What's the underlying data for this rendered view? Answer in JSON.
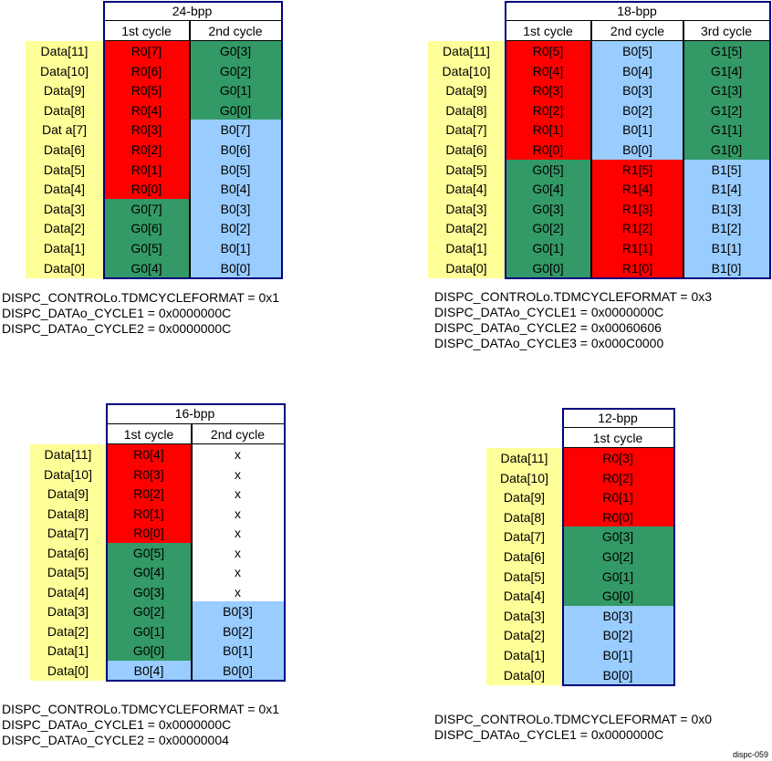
{
  "colors": {
    "R": "#ff0000",
    "G": "#339966",
    "B": "#99ccff",
    "W": "#ffffff",
    "label": "#ffff99",
    "border": "#000080"
  },
  "tables": [
    {
      "title": "24-bpp",
      "columns": [
        "1st cycle",
        "2nd cycle"
      ],
      "row_labels": [
        "Data[11]",
        "Data[10]",
        "Data[9]",
        "Data[8]",
        "Dat a[7]",
        "Data[6]",
        "Data[5]",
        "Data[4]",
        "Data[3]",
        "Data[2]",
        "Data[1]",
        "Data[0]"
      ],
      "cells": [
        [
          [
            "R0[7]",
            "R"
          ],
          [
            "R0[6]",
            "R"
          ],
          [
            "R0[5]",
            "R"
          ],
          [
            "R0[4]",
            "R"
          ],
          [
            "R0[3]",
            "R"
          ],
          [
            "R0[2]",
            "R"
          ],
          [
            "R0[1]",
            "R"
          ],
          [
            "R0[0]",
            "R"
          ],
          [
            "G0[7]",
            "G"
          ],
          [
            "G0[6]",
            "G"
          ],
          [
            "G0[5]",
            "G"
          ],
          [
            "G0[4]",
            "G"
          ]
        ],
        [
          [
            "G0[3]",
            "G"
          ],
          [
            "G0[2]",
            "G"
          ],
          [
            "G0[1]",
            "G"
          ],
          [
            "G0[0]",
            "G"
          ],
          [
            "B0[7]",
            "B"
          ],
          [
            "B0[6]",
            "B"
          ],
          [
            "B0[5]",
            "B"
          ],
          [
            "B0[4]",
            "B"
          ],
          [
            "B0[3]",
            "B"
          ],
          [
            "B0[2]",
            "B"
          ],
          [
            "B0[1]",
            "B"
          ],
          [
            "B0[0]",
            "B"
          ]
        ]
      ],
      "registers": [
        "DISPC_CONTROLo.TDMCYCLEFORMAT = 0x1",
        "DISPC_DATAo_CYCLE1 = 0x0000000C",
        "DISPC_DATAo_CYCLE2 = 0x0000000C"
      ]
    },
    {
      "title": "18-bpp",
      "columns": [
        "1st cycle",
        "2nd cycle",
        "3rd cycle"
      ],
      "row_labels": [
        "Data[11]",
        "Data[10]",
        "Data[9]",
        "Data[8]",
        "Data[7]",
        "Data[6]",
        "Data[5]",
        "Data[4]",
        "Data[3]",
        "Data[2]",
        "Data[1]",
        "Data[0]"
      ],
      "cells": [
        [
          [
            "R0[5]",
            "R"
          ],
          [
            "R0[4]",
            "R"
          ],
          [
            "R0[3]",
            "R"
          ],
          [
            "R0[2]",
            "R"
          ],
          [
            "R0[1]",
            "R"
          ],
          [
            "R0[0]",
            "R"
          ],
          [
            "G0[5]",
            "G"
          ],
          [
            "G0[4]",
            "G"
          ],
          [
            "G0[3]",
            "G"
          ],
          [
            "G0[2]",
            "G"
          ],
          [
            "G0[1]",
            "G"
          ],
          [
            "G0[0]",
            "G"
          ]
        ],
        [
          [
            "B0[5]",
            "B"
          ],
          [
            "B0[4]",
            "B"
          ],
          [
            "B0[3]",
            "B"
          ],
          [
            "B0[2]",
            "B"
          ],
          [
            "B0[1]",
            "B"
          ],
          [
            "B0[0]",
            "B"
          ],
          [
            "R1[5]",
            "R"
          ],
          [
            "R1[4]",
            "R"
          ],
          [
            "R1[3]",
            "R"
          ],
          [
            "R1[2]",
            "R"
          ],
          [
            "R1[1]",
            "R"
          ],
          [
            "R1[0]",
            "R"
          ]
        ],
        [
          [
            "G1[5]",
            "G"
          ],
          [
            "G1[4]",
            "G"
          ],
          [
            "G1[3]",
            "G"
          ],
          [
            "G1[2]",
            "G"
          ],
          [
            "G1[1]",
            "G"
          ],
          [
            "G1[0]",
            "G"
          ],
          [
            "B1[5]",
            "B"
          ],
          [
            "B1[4]",
            "B"
          ],
          [
            "B1[3]",
            "B"
          ],
          [
            "B1[2]",
            "B"
          ],
          [
            "B1[1]",
            "B"
          ],
          [
            "B1[0]",
            "B"
          ]
        ]
      ],
      "registers": [
        "DISPC_CONTROLo.TDMCYCLEFORMAT = 0x3",
        "DISPC_DATAo_CYCLE1 = 0x0000000C",
        "DISPC_DATAo_CYCLE2 = 0x00060606",
        "DISPC_DATAo_CYCLE3 = 0x000C0000"
      ]
    },
    {
      "title": "16-bpp",
      "columns": [
        "1st cycle",
        "2nd cycle"
      ],
      "row_labels": [
        "Data[11]",
        "Data[10]",
        "Data[9]",
        "Data[8]",
        "Data[7]",
        "Data[6]",
        "Data[5]",
        "Data[4]",
        "Data[3]",
        "Data[2]",
        "Data[1]",
        "Data[0]"
      ],
      "cells": [
        [
          [
            "R0[4]",
            "R"
          ],
          [
            "R0[3]",
            "R"
          ],
          [
            "R0[2]",
            "R"
          ],
          [
            "R0[1]",
            "R"
          ],
          [
            "R0[0]",
            "R"
          ],
          [
            "G0[5]",
            "G"
          ],
          [
            "G0[4]",
            "G"
          ],
          [
            "G0[3]",
            "G"
          ],
          [
            "G0[2]",
            "G"
          ],
          [
            "G0[1]",
            "G"
          ],
          [
            "G0[0]",
            "G"
          ],
          [
            "B0[4]",
            "B"
          ]
        ],
        [
          [
            "x",
            "W"
          ],
          [
            "x",
            "W"
          ],
          [
            "x",
            "W"
          ],
          [
            "x",
            "W"
          ],
          [
            "x",
            "W"
          ],
          [
            "x",
            "W"
          ],
          [
            "x",
            "W"
          ],
          [
            "x",
            "W"
          ],
          [
            "B0[3]",
            "B"
          ],
          [
            "B0[2]",
            "B"
          ],
          [
            "B0[1]",
            "B"
          ],
          [
            "B0[0]",
            "B"
          ]
        ]
      ],
      "registers": [
        "DISPC_CONTROLo.TDMCYCLEFORMAT = 0x1",
        "DISPC_DATAo_CYCLE1 = 0x0000000C",
        "DISPC_DATAo_CYCLE2 = 0x00000004"
      ]
    },
    {
      "title": "12-bpp",
      "columns": [
        "1st cycle"
      ],
      "row_labels": [
        "Data[11]",
        "Data[10]",
        "Data[9]",
        "Data[8]",
        "Data[7]",
        "Data[6]",
        "Data[5]",
        "Data[4]",
        "Data[3]",
        "Data[2]",
        "Data[1]",
        "Data[0]"
      ],
      "cells": [
        [
          [
            "R0[3]",
            "R"
          ],
          [
            "R0[2]",
            "R"
          ],
          [
            "R0[1]",
            "R"
          ],
          [
            "R0[0]",
            "R"
          ],
          [
            "G0[3]",
            "G"
          ],
          [
            "G0[2]",
            "G"
          ],
          [
            "G0[1]",
            "G"
          ],
          [
            "G0[0]",
            "G"
          ],
          [
            "B0[3]",
            "B"
          ],
          [
            "B0[2]",
            "B"
          ],
          [
            "B0[1]",
            "B"
          ],
          [
            "B0[0]",
            "B"
          ]
        ]
      ],
      "registers": [
        "DISPC_CONTROLo.TDMCYCLEFORMAT = 0x0",
        "DISPC_DATAo_CYCLE1 = 0x0000000C"
      ]
    }
  ],
  "figure_id": "dispc-059"
}
